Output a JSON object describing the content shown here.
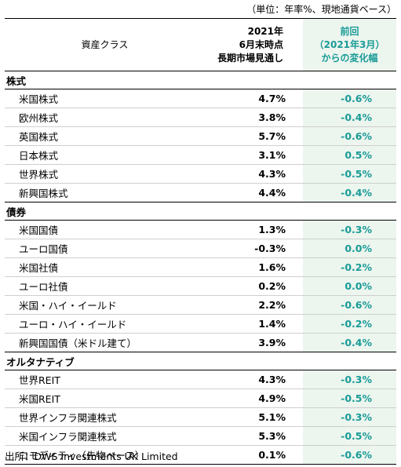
{
  "unit_note": "（単位：年率%、現地通貨ベース）",
  "header": {
    "asset_class": "資産クラス",
    "projection": [
      "2021年",
      "6月末時点",
      "長期市場見通し"
    ],
    "change": [
      "前回",
      "（2021年3月）",
      "からの変化幅"
    ]
  },
  "colors": {
    "change_text": "#1a9b97",
    "change_bg": "#ecf5ee"
  },
  "sections": [
    {
      "name": "株式",
      "rows": [
        {
          "name": "米国株式",
          "value": "4.7%",
          "change": "-0.6%"
        },
        {
          "name": "欧州株式",
          "value": "3.8%",
          "change": "-0.4%"
        },
        {
          "name": "英国株式",
          "value": "5.7%",
          "change": "-0.6%"
        },
        {
          "name": "日本株式",
          "value": "3.1%",
          "change": "0.5%"
        },
        {
          "name": "世界株式",
          "value": "4.3%",
          "change": "-0.5%"
        },
        {
          "name": "新興国株式",
          "value": "4.4%",
          "change": "-0.4%"
        }
      ]
    },
    {
      "name": "債券",
      "rows": [
        {
          "name": "米国国債",
          "value": "1.3%",
          "change": "-0.3%"
        },
        {
          "name": "ユーロ国債",
          "value": "-0.3%",
          "change": "0.0%"
        },
        {
          "name": "米国社債",
          "value": "1.6%",
          "change": "-0.2%"
        },
        {
          "name": "ユーロ社債",
          "value": "0.2%",
          "change": "0.0%"
        },
        {
          "name": "米国・ハイ・イールド",
          "value": "2.2%",
          "change": "-0.6%"
        },
        {
          "name": "ユーロ・ハイ・イールド",
          "value": "1.4%",
          "change": "-0.2%"
        },
        {
          "name": "新興国国債（米ドル建て）",
          "value": "3.9%",
          "change": "-0.4%"
        }
      ]
    },
    {
      "name": "オルタナティブ",
      "rows": [
        {
          "name": "世界REIT",
          "value": "4.3%",
          "change": "-0.3%"
        },
        {
          "name": "米国REIT",
          "value": "4.9%",
          "change": "-0.5%"
        },
        {
          "name": "世界インフラ関連株式",
          "value": "5.1%",
          "change": "-0.3%"
        },
        {
          "name": "米国インフラ関連株式",
          "value": "5.3%",
          "change": "-0.5%"
        },
        {
          "name": "コモディティ（先物ベース）",
          "value": "0.1%",
          "change": "-0.6%"
        }
      ]
    }
  ],
  "source": "出所：DWS Investments UK Limited"
}
